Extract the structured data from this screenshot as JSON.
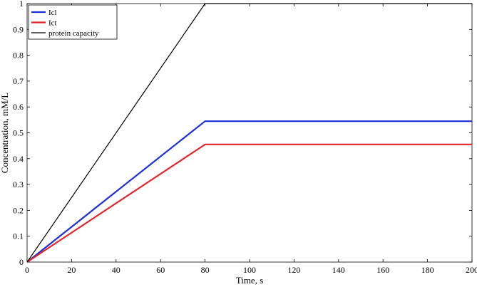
{
  "chart_data": {
    "type": "line",
    "title": "",
    "xlabel": "Time, s",
    "ylabel": "Concentration, mM/L",
    "xlim": [
      0,
      200
    ],
    "ylim": [
      0,
      1
    ],
    "xticks": [
      0,
      20,
      40,
      60,
      80,
      100,
      120,
      140,
      160,
      180,
      200
    ],
    "yticks": [
      0,
      0.1,
      0.2,
      0.3,
      0.4,
      0.5,
      0.6,
      0.7,
      0.8,
      0.9,
      1
    ],
    "xtick_labels": [
      "0",
      "20",
      "40",
      "60",
      "80",
      "100",
      "120",
      "140",
      "160",
      "180",
      "200"
    ],
    "ytick_labels": [
      "0",
      "0.1",
      "0.2",
      "0.3",
      "0.4",
      "0.5",
      "0.6",
      "0.7",
      "0.8",
      "0.9",
      "1"
    ],
    "grid": false,
    "legend_position": "top-left",
    "series": [
      {
        "name": "Icl",
        "color": "#1f2fd6",
        "x": [
          0,
          80,
          200
        ],
        "y": [
          0,
          0.545,
          0.545
        ]
      },
      {
        "name": "Ict",
        "color": "#e0262a",
        "x": [
          0,
          80,
          200
        ],
        "y": [
          0,
          0.455,
          0.455
        ]
      },
      {
        "name": "protein capacity",
        "color": "#000000",
        "x": [
          0,
          80,
          200
        ],
        "y": [
          0,
          1.0,
          1.0
        ]
      }
    ]
  }
}
